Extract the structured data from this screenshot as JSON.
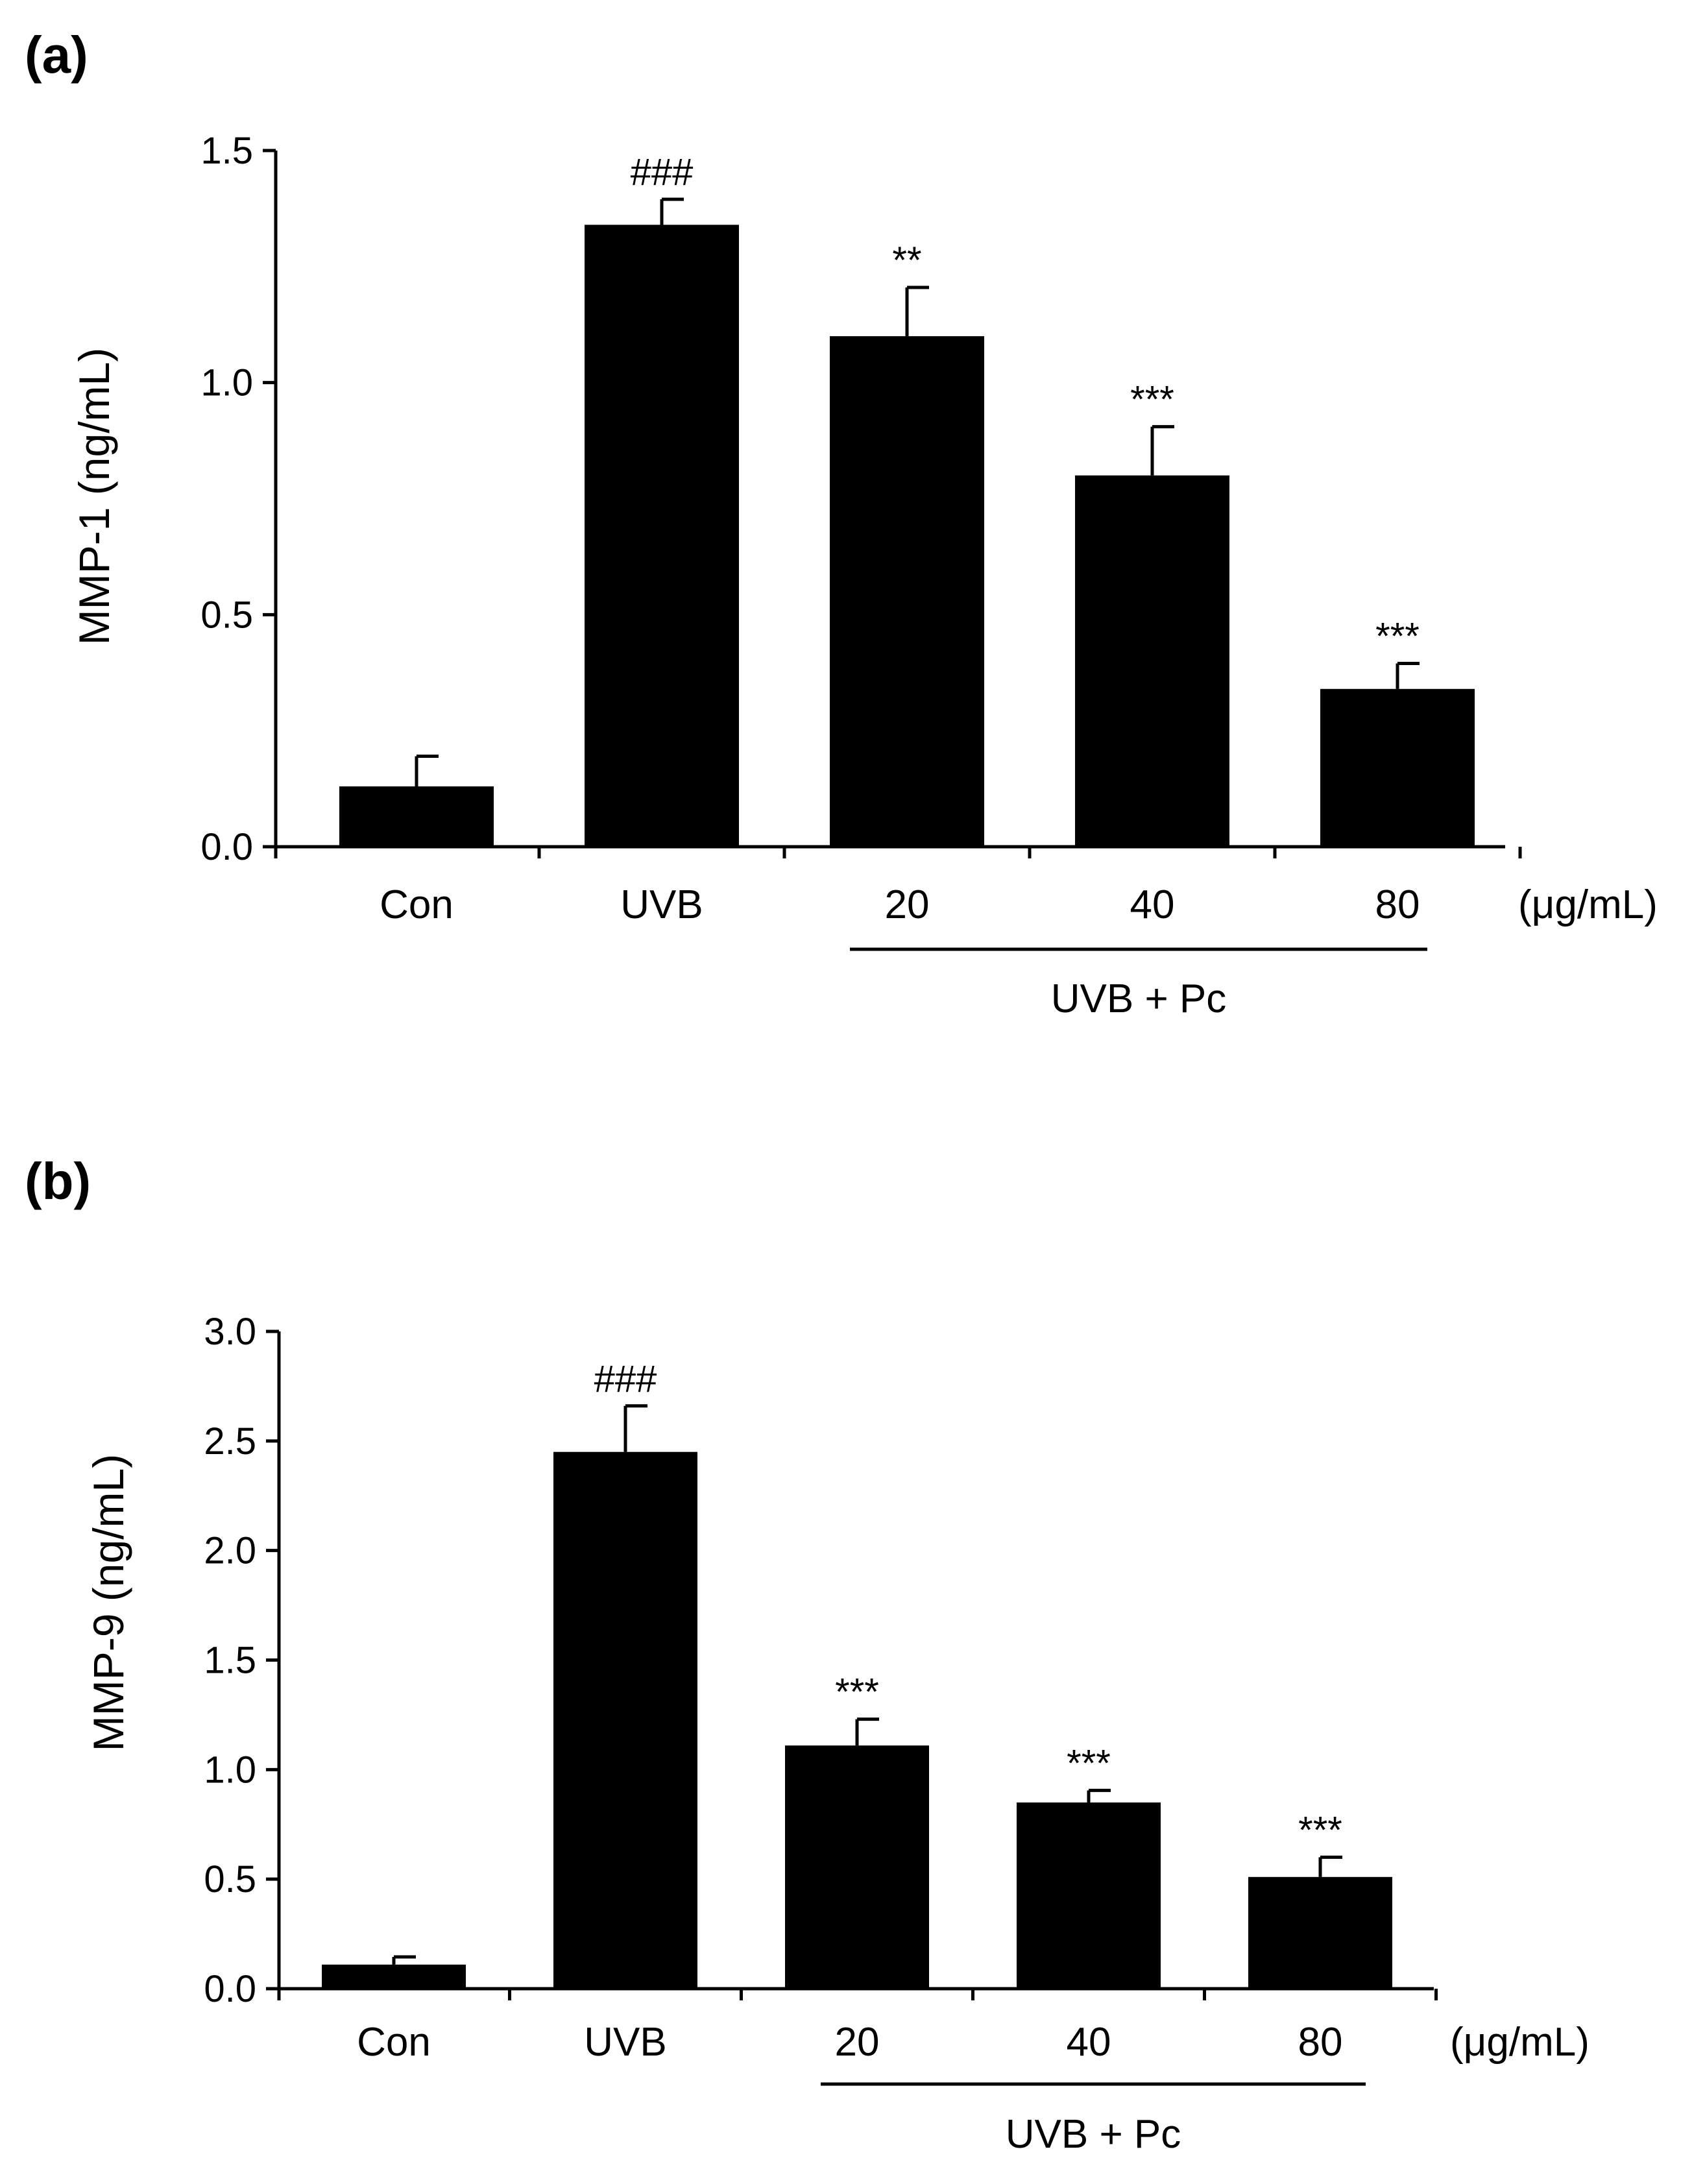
{
  "chart_data": [
    {
      "type": "bar",
      "panel_label": "(a)",
      "categories": [
        "Con",
        "UVB",
        "20",
        "40",
        "80"
      ],
      "values": [
        0.13,
        1.34,
        1.1,
        0.8,
        0.34
      ],
      "errors": [
        0.065,
        0.055,
        0.105,
        0.105,
        0.055
      ],
      "annotations": [
        "",
        "###",
        "**",
        "***",
        "***"
      ],
      "ylabel": "MMP-1 (ng/mL)",
      "ylim": [
        0,
        1.5
      ],
      "yticks": [
        "0.0",
        "0.5",
        "1.0",
        "1.5"
      ],
      "ytick_values": [
        0,
        0.5,
        1.0,
        1.5
      ],
      "unit_label": "(μg/mL)",
      "group_label": "UVB + Pc",
      "bar_color": "#000000"
    },
    {
      "type": "bar",
      "panel_label": "(b)",
      "categories": [
        "Con",
        "UVB",
        "20",
        "40",
        "80"
      ],
      "values": [
        0.11,
        2.45,
        1.11,
        0.85,
        0.51
      ],
      "errors": [
        0.035,
        0.21,
        0.12,
        0.055,
        0.09
      ],
      "annotations": [
        "",
        "###",
        "***",
        "***",
        "***"
      ],
      "ylabel": "MMP-9 (ng/mL)",
      "ylim": [
        0,
        3.0
      ],
      "yticks": [
        "0.0",
        "0.5",
        "1.0",
        "1.5",
        "2.0",
        "2.5",
        "3.0"
      ],
      "ytick_values": [
        0,
        0.5,
        1.0,
        1.5,
        2.0,
        2.5,
        3.0
      ],
      "unit_label": "(μg/mL)",
      "group_label": "UVB + Pc",
      "bar_color": "#000000"
    }
  ]
}
